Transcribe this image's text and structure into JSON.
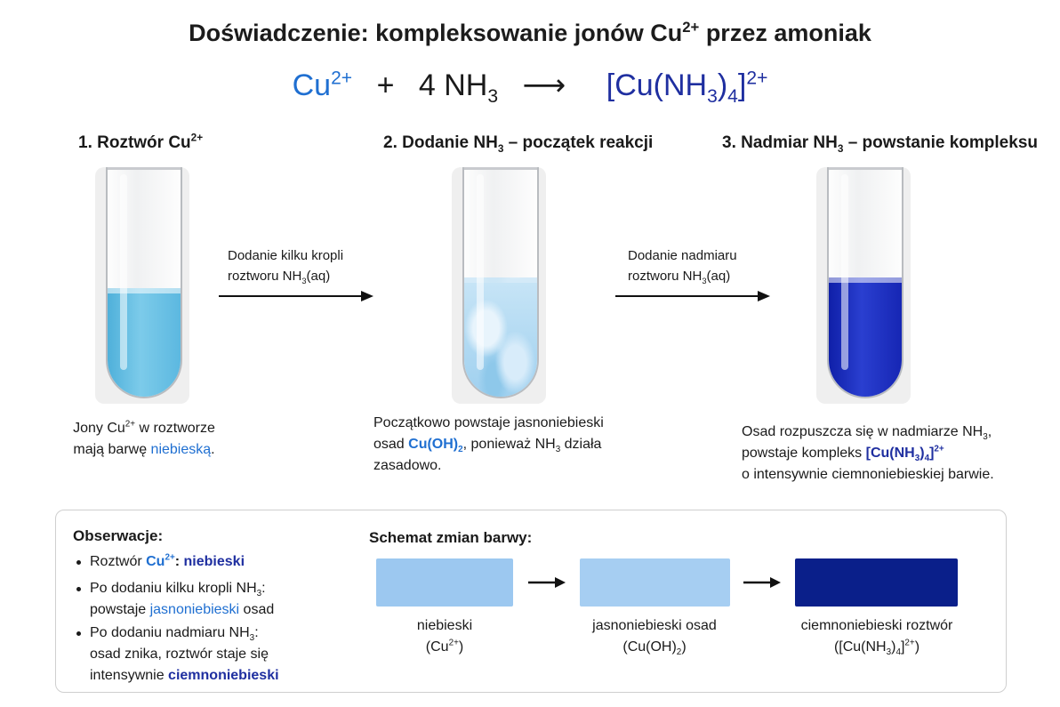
{
  "title": "Doświadczenie: kompleksowanie jonów Cu",
  "title_sup": "2+",
  "title_end": " przez amoniak",
  "equation": {
    "reactant1": "Cu",
    "reactant1_sup": "2+",
    "plus": "+",
    "reactant2": "4 NH",
    "reactant2_sub": "3",
    "arrow": "⟶",
    "product_a": "[Cu(NH",
    "product_sub1": "3",
    "product_b": ")",
    "product_sub2": "4",
    "product_c": "]",
    "product_sup": "2+"
  },
  "steps": [
    {
      "title": "1. Roztwór Cu",
      "title_sup": "2+"
    },
    {
      "title": "2. Dodanie NH",
      "title_sub": "3",
      "title_end": " – początek reakcji"
    },
    {
      "title": "3. Nadmiar NH",
      "title_sub": "3",
      "title_end": " – powstanie kompleksu"
    }
  ],
  "arrows": [
    {
      "line1": "Dodanie kilku kropli",
      "line2a": "roztworu NH",
      "line2sub": "3",
      "line2b": "(aq)"
    },
    {
      "line1": "Dodanie nadmiaru",
      "line2a": "roztworu NH",
      "line2sub": "3",
      "line2b": "(aq)"
    }
  ],
  "captions": {
    "c1": {
      "a": "Jony Cu",
      "sup": "2+",
      "b": " w roztworze",
      "c": "mają barwę ",
      "hl": "niebieską",
      "d": "."
    },
    "c2": {
      "a": "Początkowo powstaje jasnoniebieski",
      "b": "osad ",
      "hl": "Cu(OH)",
      "hl_sub": "2",
      "c": ", ponieważ NH",
      "c_sub": "3",
      "d": " działa",
      "e": "zasadowo."
    },
    "c3": {
      "a": "Osad rozpuszcza się w nadmiarze NH",
      "a_sub": "3",
      "a_end": ",",
      "b": "powstaje kompleks ",
      "hl": "[Cu(NH",
      "hl_sub1": "3",
      "hl2": ")",
      "hl_sub2": "4",
      "hl3": "]",
      "hl_sup": "2+",
      "c": "o intensywnie ciemnoniebieskiej barwie."
    }
  },
  "observations": {
    "title": "Obserwacje:",
    "i1": {
      "a": "Roztwór ",
      "b": "Cu",
      "b_sup": "2+",
      "c": ": ",
      "d": "niebieski"
    },
    "i2": {
      "a": "Po dodaniu kilku kropli NH",
      "a_sub": "3",
      "a_end": ":",
      "b": "powstaje ",
      "c": "jasnoniebieski",
      "d": " osad"
    },
    "i3": {
      "a": "Po dodaniu nadmiaru NH",
      "a_sub": "3",
      "a_end": ":",
      "b": "osad znika, roztwór staje się",
      "c": "intensywnie ",
      "d": "ciemnoniebieski"
    }
  },
  "scheme": {
    "title": "Schemat zmian barwy:",
    "s1": {
      "label": "niebieski",
      "f_a": "(Cu",
      "f_sup": "2+",
      "f_b": ")",
      "color": "#9cc8f0"
    },
    "s2": {
      "label": "jasnoniebieski osad",
      "f_a": "(Cu(OH)",
      "f_sub": "2",
      "f_b": ")",
      "color": "#a6cef2"
    },
    "s3": {
      "label": "ciemnoniebieski roztwór",
      "f_a": "([Cu(NH",
      "f_sub1": "3",
      "f_b": ")",
      "f_sub2": "4",
      "f_c": "]",
      "f_sup": "2+",
      "f_d": ")",
      "color": "#0a1f8a"
    }
  },
  "colors": {
    "cu_solution": "#6cc0e4",
    "precipitate": "#a7d3f0",
    "complex": "#1728b8",
    "accent_blue": "#1f6fd1",
    "accent_dark": "#1f2fa0"
  }
}
